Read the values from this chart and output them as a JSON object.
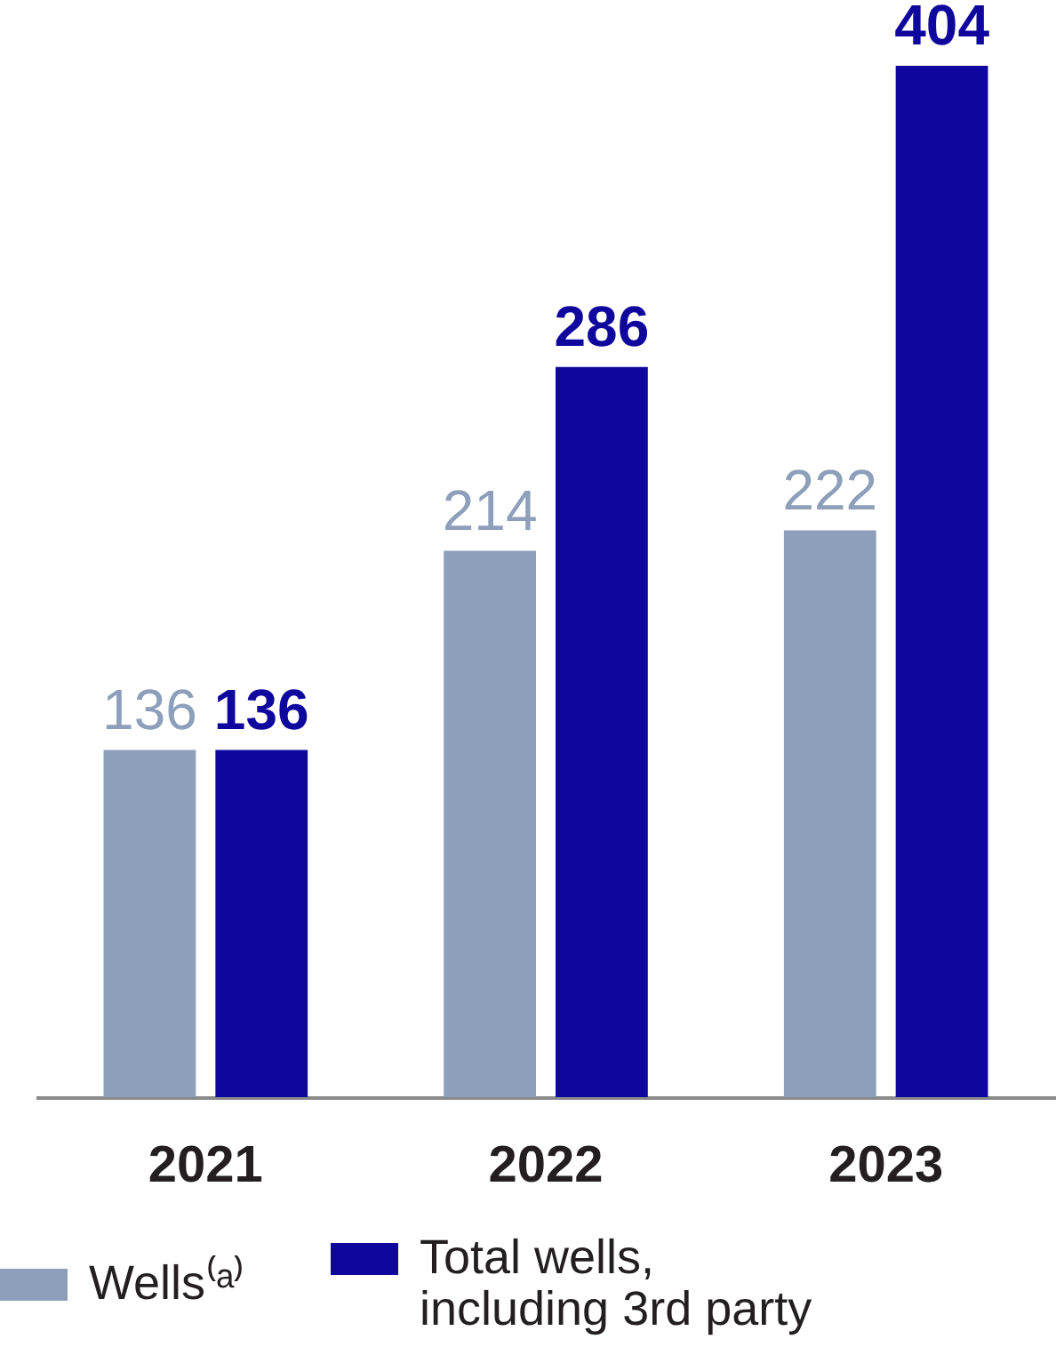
{
  "chart_data": {
    "type": "bar",
    "categories": [
      "2021",
      "2022",
      "2023"
    ],
    "series": [
      {
        "name": "Wells⁽ᵃ⁾",
        "color": "#8d9fba",
        "values": [
          136,
          214,
          222
        ]
      },
      {
        "name": "Total wells, including 3rd party",
        "color": "#0f069e",
        "values": [
          136,
          286,
          404
        ]
      }
    ],
    "data_labels": true,
    "legend": "bottom"
  }
}
